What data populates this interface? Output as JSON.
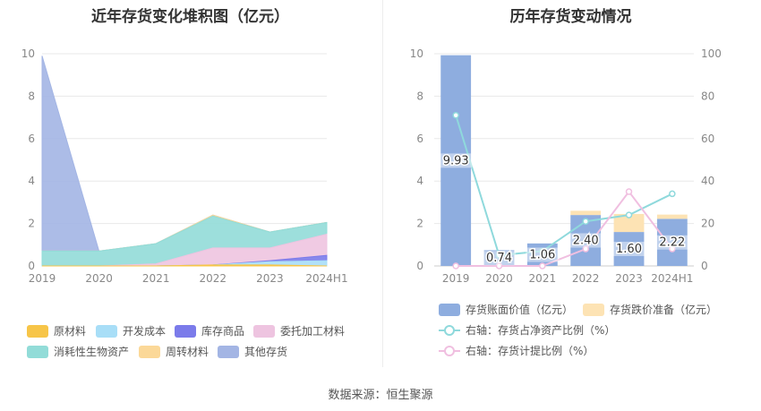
{
  "left_chart": {
    "title": "近年存货变化堆积图（亿元）"
  },
  "right_chart": {
    "title": "历年存货变动情况"
  },
  "source": "数据来源：恒生聚源",
  "chart_data": [
    {
      "type": "area",
      "title": "近年存货变化堆积图（亿元）",
      "categories": [
        "2019",
        "2020",
        "2021",
        "2022",
        "2023",
        "2024H1"
      ],
      "ylim": [
        0,
        10
      ],
      "yticks": [
        0,
        2,
        4,
        6,
        8,
        10
      ],
      "stacked": true,
      "grid": true,
      "legend_position": "bottom",
      "series": [
        {
          "name": "原材料",
          "color": "#f7c548",
          "values": [
            0,
            0,
            0,
            0.05,
            0.05,
            0
          ]
        },
        {
          "name": "开发成本",
          "color": "#a8def7",
          "values": [
            0,
            0,
            0,
            0,
            0.15,
            0.25
          ]
        },
        {
          "name": "库存商品",
          "color": "#7b7bea",
          "values": [
            0,
            0,
            0,
            0,
            0.05,
            0.25
          ]
        },
        {
          "name": "委托加工材料",
          "color": "#eec4e0",
          "values": [
            0,
            0,
            0.1,
            0.8,
            0.6,
            1.0
          ]
        },
        {
          "name": "消耗性生物资产",
          "color": "#92dcd8",
          "values": [
            0.7,
            0.7,
            0.95,
            1.5,
            0.75,
            0.55
          ]
        },
        {
          "name": "周转材料",
          "color": "#fbd898",
          "values": [
            0,
            0,
            0,
            0.05,
            0,
            0
          ]
        },
        {
          "name": "其他存货",
          "color": "#a3b5e4",
          "values": [
            9.2,
            0,
            0,
            0,
            0,
            0
          ]
        }
      ]
    },
    {
      "type": "bar",
      "title": "历年存货变动情况",
      "categories": [
        "2019",
        "2020",
        "2021",
        "2022",
        "2023",
        "2024H1"
      ],
      "ylim": [
        0,
        10
      ],
      "yticks": [
        0,
        2,
        4,
        6,
        8,
        10
      ],
      "y2lim": [
        0,
        100
      ],
      "y2ticks": [
        0,
        20,
        40,
        60,
        80,
        100
      ],
      "stacked": true,
      "grid": true,
      "legend_position": "bottom",
      "series": [
        {
          "name": "存货账面价值（亿元）",
          "color": "#8eaddf",
          "values": [
            9.93,
            0.74,
            1.06,
            2.4,
            1.6,
            2.22
          ],
          "labels": [
            "9.93",
            "0.74",
            "1.06",
            "2.40",
            "1.60",
            "2.22"
          ]
        },
        {
          "name": "存货跌价准备（亿元）",
          "color": "#fde3b4",
          "values": [
            0,
            0,
            0,
            0.2,
            0.85,
            0.2
          ]
        }
      ],
      "line_series": [
        {
          "name": "右轴：存货占净资产比例（%）",
          "color": "#8fd9dc",
          "values": [
            71,
            5,
            7,
            21,
            24,
            34
          ]
        },
        {
          "name": "右轴：存货计提比例（%）",
          "color": "#f0bfe0",
          "values": [
            0,
            0,
            0,
            8,
            35,
            8
          ]
        }
      ]
    }
  ]
}
